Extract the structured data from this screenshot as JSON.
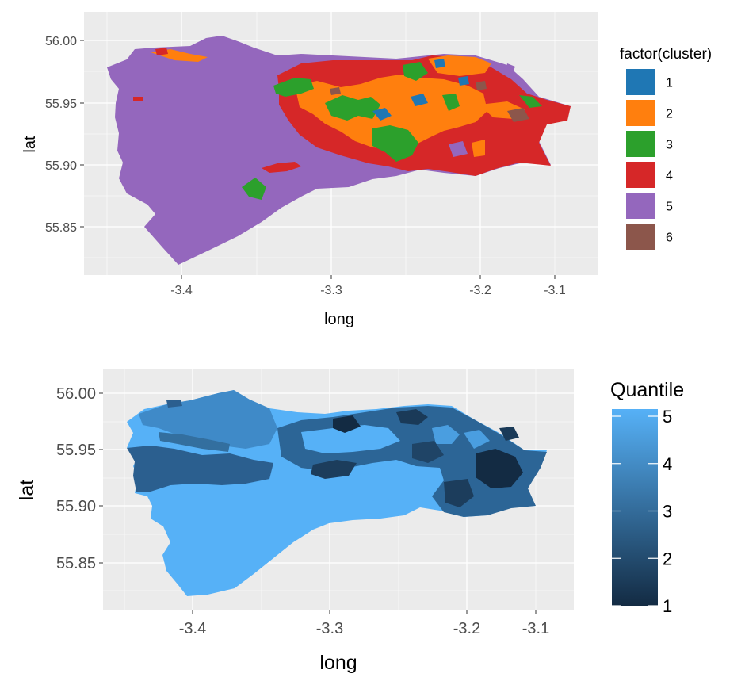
{
  "plots": [
    {
      "xlabel": "long",
      "ylabel": "lat",
      "x_ticks": [
        "-3.4",
        "-3.3",
        "-3.2",
        "-3.1"
      ],
      "y_ticks": [
        "56.00",
        "55.95",
        "55.90",
        "55.85"
      ],
      "legend": {
        "title": "factor(cluster)",
        "items": [
          {
            "label": "1",
            "color": "#1f77b4"
          },
          {
            "label": "2",
            "color": "#ff7f0e"
          },
          {
            "label": "3",
            "color": "#2ca02c"
          },
          {
            "label": "4",
            "color": "#d62728"
          },
          {
            "label": "5",
            "color": "#9467bd"
          },
          {
            "label": "6",
            "color": "#8c564b"
          }
        ]
      }
    },
    {
      "xlabel": "long",
      "ylabel": "lat",
      "x_ticks": [
        "-3.4",
        "-3.3",
        "-3.2",
        "-3.1"
      ],
      "y_ticks": [
        "56.00",
        "55.95",
        "55.90",
        "55.85"
      ],
      "legend": {
        "title": "Quantile",
        "labels": [
          "5",
          "4",
          "3",
          "2",
          "1"
        ],
        "gradient": {
          "low": "#132b43",
          "high": "#56b1f7"
        }
      }
    }
  ],
  "chart_data": [
    {
      "type": "heatmap",
      "xlabel": "long",
      "ylabel": "lat",
      "xlim": [
        -3.46,
        -3.06
      ],
      "ylim": [
        55.81,
        56.02
      ],
      "color_variable": "factor(cluster)",
      "categories": [
        "1",
        "2",
        "3",
        "4",
        "5",
        "6"
      ],
      "grid": true,
      "legend_position": "right"
    },
    {
      "type": "heatmap",
      "xlabel": "long",
      "ylabel": "lat",
      "xlim": [
        -3.46,
        -3.06
      ],
      "ylim": [
        55.81,
        56.02
      ],
      "color_variable": "Quantile",
      "color_range": [
        1,
        5
      ],
      "grid": true,
      "legend_position": "right"
    }
  ]
}
